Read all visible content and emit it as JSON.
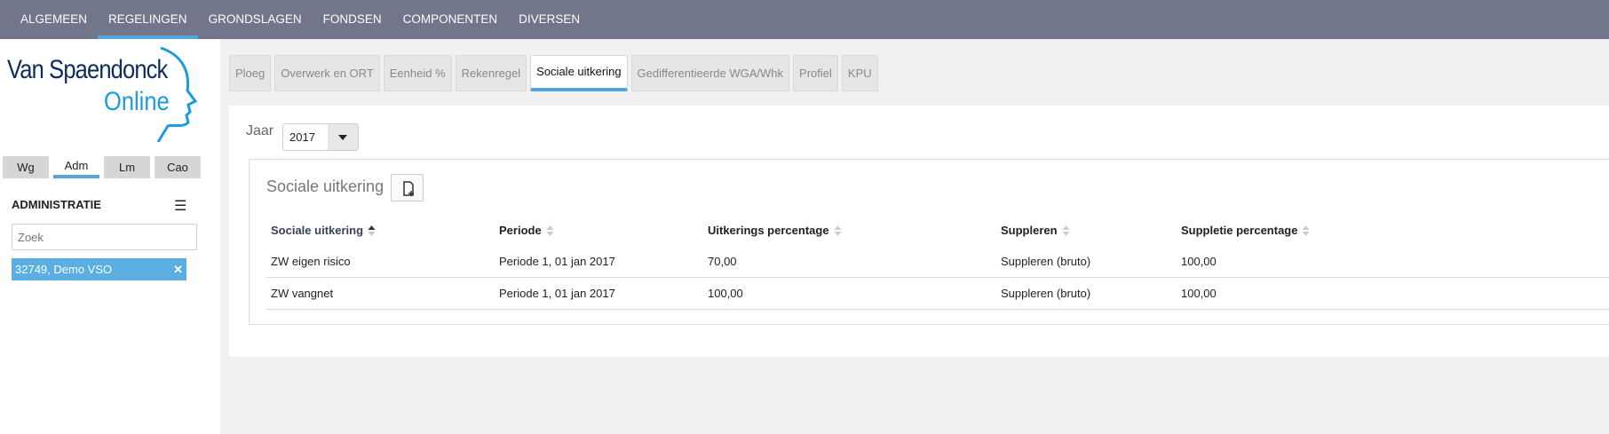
{
  "topnav": [
    "ALGEMEEN",
    "REGELINGEN",
    "GRONDSLAGEN",
    "FONDSEN",
    "COMPONENTEN",
    "DIVERSEN"
  ],
  "topnav_active": "REGELINGEN",
  "logo": {
    "line1": "Van Spaendonck",
    "line2": "Online"
  },
  "sidebar": {
    "tabs": [
      "Wg",
      "Adm",
      "Lm",
      "Cao"
    ],
    "active_tab": "Adm",
    "section_title": "ADMINISTRATIE",
    "search_placeholder": "Zoek",
    "selected": "32749, Demo VSO"
  },
  "tabs": [
    "Ploeg",
    "Overwerk en ORT",
    "Eenheid %",
    "Rekenregel",
    "Sociale uitkering",
    "Gedifferentieerde WGA/Whk",
    "Profiel",
    "KPU"
  ],
  "active_tab": "Sociale uitkering",
  "year": {
    "label": "Jaar",
    "value": "2017"
  },
  "section": {
    "title": "Sociale uitkering",
    "columns": [
      "Sociale uitkering",
      "Periode",
      "Uitkerings percentage",
      "Suppleren",
      "Suppletie percentage"
    ],
    "sorted_column": "Sociale uitkering",
    "rows": [
      [
        "ZW eigen risico",
        "Periode 1, 01 jan 2017",
        "70,00",
        "Suppleren (bruto)",
        "100,00"
      ],
      [
        "ZW vangnet",
        "Periode 1, 01 jan 2017",
        "100,00",
        "Suppleren (bruto)",
        "100,00"
      ]
    ]
  },
  "colors": {
    "topbar": "#71768c",
    "accent": "#55a6dc",
    "chip": "#5aaee2"
  }
}
